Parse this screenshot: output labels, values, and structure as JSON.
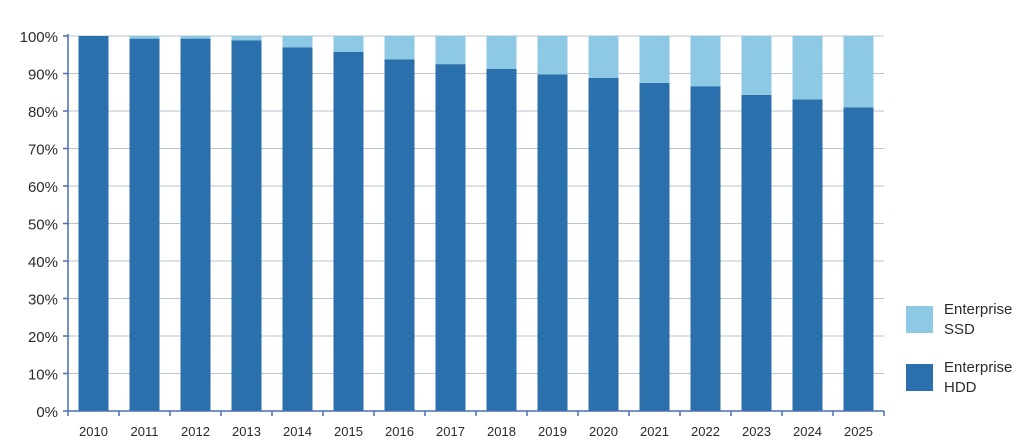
{
  "chart_data": {
    "type": "bar",
    "stacked": true,
    "categories": [
      "2010",
      "2011",
      "2012",
      "2013",
      "2014",
      "2015",
      "2016",
      "2017",
      "2018",
      "2019",
      "2020",
      "2021",
      "2022",
      "2023",
      "2024",
      "2025"
    ],
    "series": [
      {
        "name": "Enterprise\nHDD",
        "color": "#2a70ad",
        "values": [
          100,
          99.3,
          99.3,
          98.8,
          97,
          95.8,
          93.8,
          92.5,
          91.2,
          89.8,
          88.8,
          87.5,
          86.6,
          84.3,
          83.1,
          81
        ]
      },
      {
        "name": "Enterprise\nSSD",
        "color": "#8dc9e4",
        "values": [
          0,
          0.7,
          0.7,
          1.2,
          3,
          4.2,
          6.2,
          7.5,
          8.8,
          10.2,
          11.2,
          12.5,
          13.4,
          15.7,
          16.9,
          19
        ]
      }
    ],
    "y_ticks": [
      "0%",
      "10%",
      "20%",
      "30%",
      "40%",
      "50%",
      "60%",
      "70%",
      "80%",
      "90%",
      "100%"
    ],
    "ylim": [
      0,
      100
    ],
    "grid": true,
    "legend_position": "bottom-right",
    "title": "",
    "xlabel": "",
    "ylabel": ""
  },
  "legend": {
    "items": [
      {
        "label": "Enterprise\nSSD",
        "color": "#8dc9e4"
      },
      {
        "label": "Enterprise\nHDD",
        "color": "#2a70ad"
      }
    ]
  },
  "colors": {
    "axis": "#4a6fb0",
    "grid": "#b9c3d1"
  }
}
